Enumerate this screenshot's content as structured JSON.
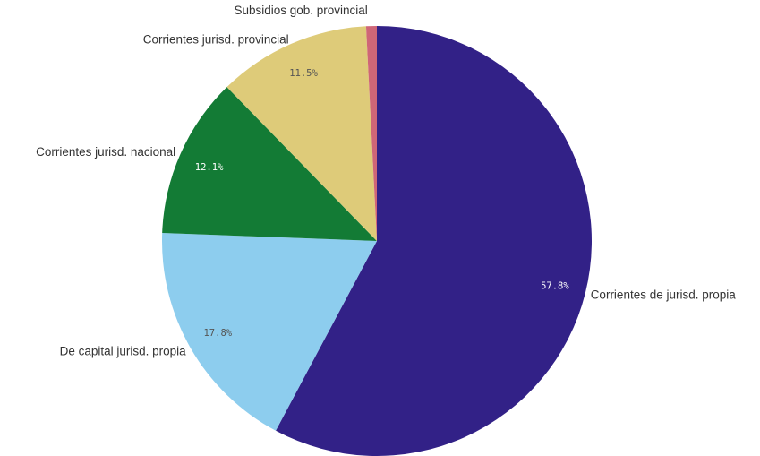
{
  "chart_data": {
    "type": "pie",
    "title": "",
    "start_angle_deg": 0,
    "direction": "clockwise",
    "legend": "none",
    "slices": [
      {
        "label": "Corrientes de jurisd. propia",
        "value": 57.8,
        "value_label": "57.8%",
        "color": "#322187",
        "label_color": "#ffffff"
      },
      {
        "label": "De capital jurisd. propia",
        "value": 17.8,
        "value_label": "17.8%",
        "color": "#8dcdee",
        "label_color": "#555555"
      },
      {
        "label": "Corrientes jurisd. nacional",
        "value": 12.1,
        "value_label": "12.1%",
        "color": "#137b35",
        "label_color": "#ffffff"
      },
      {
        "label": "Corrientes jurisd. provincial",
        "value": 11.5,
        "value_label": "11.5%",
        "color": "#decb79",
        "label_color": "#555555"
      },
      {
        "label": "Subsidios gob. provincial",
        "value": 0.8,
        "value_label": "",
        "color": "#cf6677",
        "label_color": "#555555"
      }
    ]
  }
}
